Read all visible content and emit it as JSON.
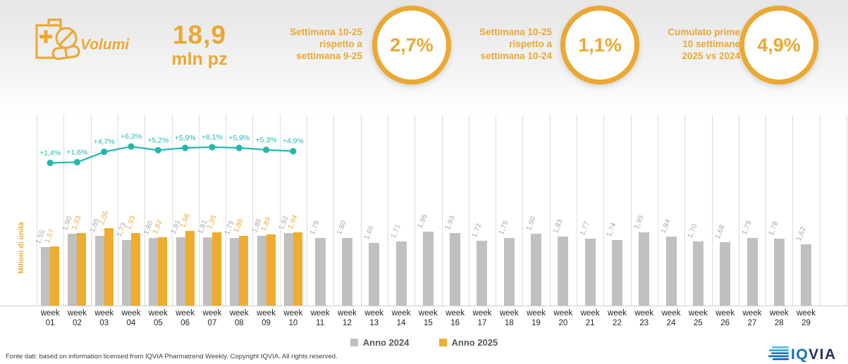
{
  "header": {
    "section_label": "Volumi",
    "total": {
      "value": "18,9",
      "unit": "mln pz"
    },
    "accent_color": "#EBA832",
    "kpis": [
      {
        "line1": "Settimana 10-25",
        "line2": "rispetto a",
        "line3": "settimana 9-25",
        "value": "2,7%"
      },
      {
        "line1": "Settimana 10-25",
        "line2": "rispetto a",
        "line3": "settimana 10-24",
        "value": "1,1%"
      },
      {
        "line1": "Cumulato prime",
        "line2": "10 settimane",
        "line3": "2025 vs 2024",
        "value": "4,9%"
      }
    ]
  },
  "chart_data": {
    "type": "bar",
    "ylabel": "Milioni di unità",
    "x_word": "week",
    "categories": [
      "01",
      "02",
      "03",
      "04",
      "05",
      "06",
      "07",
      "08",
      "09",
      "10",
      "11",
      "12",
      "13",
      "14",
      "15",
      "16",
      "17",
      "18",
      "19",
      "20",
      "21",
      "22",
      "23",
      "24",
      "25",
      "26",
      "27",
      "28",
      "29"
    ],
    "series": [
      {
        "name": "Anno 2024",
        "color": "#C0C0C0",
        "label_color": "#A6A6A6",
        "values": [
          1.55,
          1.9,
          1.85,
          1.73,
          1.8,
          1.81,
          1.81,
          1.79,
          1.86,
          1.92,
          1.79,
          1.8,
          1.66,
          1.71,
          1.96,
          1.93,
          1.72,
          1.79,
          1.9,
          1.83,
          1.77,
          1.74,
          1.95,
          1.84,
          1.7,
          1.68,
          1.79,
          1.78,
          1.62
        ]
      },
      {
        "name": "Anno 2025",
        "color": "#EFAC2E",
        "label_color": "#EBA832",
        "values": [
          1.57,
          1.93,
          2.05,
          1.93,
          1.82,
          1.98,
          1.95,
          1.86,
          1.89,
          1.94
        ]
      }
    ],
    "line_series": {
      "color": "#22B8AF",
      "values_pct": [
        1.4,
        1.6,
        4.7,
        6.3,
        5.2,
        5.9,
        6.1,
        5.9,
        5.3,
        4.9
      ]
    },
    "decimal_separator": ",",
    "ylim": [
      0,
      5
    ],
    "grid": "vertical",
    "legend_position": "bottom"
  },
  "legend": {
    "items": [
      {
        "label": "Anno 2024",
        "color": "#C0C0C0"
      },
      {
        "label": "Anno 2025",
        "color": "#EFAC2E"
      }
    ]
  },
  "footer": {
    "source_text": "Fonte dati: based on information licensed from IQVIA Pharmatrend Weekly. Copyright IQVIA. All rights reserved."
  },
  "logo": {
    "text": "IQVIA"
  }
}
